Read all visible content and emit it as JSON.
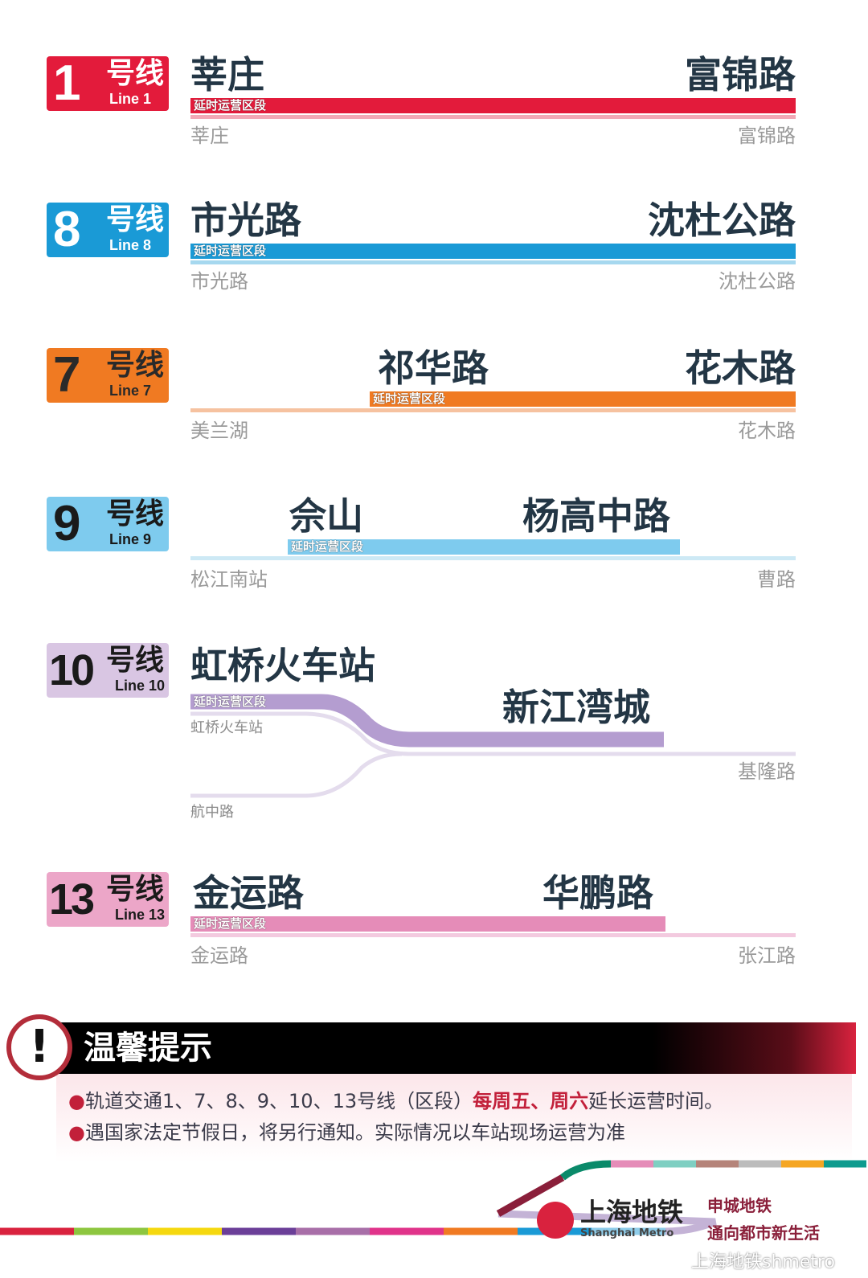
{
  "lines": [
    {
      "id": "1",
      "num": "1",
      "hx": "号线",
      "en": "Line 1",
      "color": "#e31b3b",
      "light": "#f2a8b6",
      "text": "#ffffff",
      "from": "莘庄",
      "to": "富锦路",
      "tag": "延时运营区段",
      "end_a": "莘庄",
      "end_b": "富锦路"
    },
    {
      "id": "8",
      "num": "8",
      "hx": "号线",
      "en": "Line 8",
      "color": "#1a9ad6",
      "light": "#a6d8ef",
      "text": "#ffffff",
      "from": "市光路",
      "to": "沈杜公路",
      "tag": "延时运营区段",
      "end_a": "市光路",
      "end_b": "沈杜公路"
    },
    {
      "id": "7",
      "num": "7",
      "hx": "号线",
      "en": "Line 7",
      "color": "#f07a22",
      "light": "#f6c2a0",
      "text": "#2a2a2a",
      "from": "祁华路",
      "to": "花木路",
      "tag": "延时运营区段",
      "end_a": "美兰湖",
      "end_b": "花木路"
    },
    {
      "id": "9",
      "num": "9",
      "hx": "号线",
      "en": "Line 9",
      "color": "#7ecbee",
      "light": "#cde9f5",
      "text": "#1a1a1a",
      "from": "佘山",
      "to": "杨高中路",
      "tag": "延时运营区段",
      "end_a": "松江南站",
      "end_b": "曹路"
    },
    {
      "id": "10",
      "num": "10",
      "hx": "号线",
      "en": "Line 10",
      "color": "#b49dd0",
      "light": "#e4dced",
      "text": "#1a1a1a",
      "badge": "#d9c6e3",
      "from": "虹桥火车站",
      "to": "新江湾城",
      "tag": "延时运营区段",
      "end_a": "虹桥火车站",
      "end_b": "基隆路",
      "end_c": "航中路"
    },
    {
      "id": "13",
      "num": "13",
      "hx": "号线",
      "en": "Line 13",
      "color": "#e58cb8",
      "light": "#f3cadf",
      "text": "#1a1a1a",
      "badge": "#eca6c8",
      "from": "金运路",
      "to": "华鹏路",
      "tag": "延时运营区段",
      "end_a": "金运路",
      "end_b": "张江路"
    }
  ],
  "notice": {
    "title": "温馨提示",
    "line1_pre": "轨道交通1、7、8、9、10、13号线（区段）",
    "line1_em": "每周五、周六",
    "line1_post": "延长运营时间。",
    "line2": "遇国家法定节假日，将另行通知。实际情况以车站现场运营为准"
  },
  "footer": {
    "logo_cn": "上海地铁",
    "logo_en": "Shanghai Metro",
    "slogan_1": "申城地铁",
    "slogan_2": "通向都市新生活",
    "watermark": "上海地铁shmetro",
    "stripe_colors": [
      "#d9223e",
      "#8dc63f",
      "#f5d80f",
      "#6b3f98",
      "#a86fa8",
      "#e0338a",
      "#f07a22",
      "#1a9ad6",
      "#8fcdea",
      "#c4b3d6",
      "#8a1f3a",
      "#0a8a6a",
      "#e58cb8",
      "#7fcfc2",
      "#b5847a",
      "#bcbcbc",
      "#f5a623",
      "#0e9b8e"
    ]
  }
}
